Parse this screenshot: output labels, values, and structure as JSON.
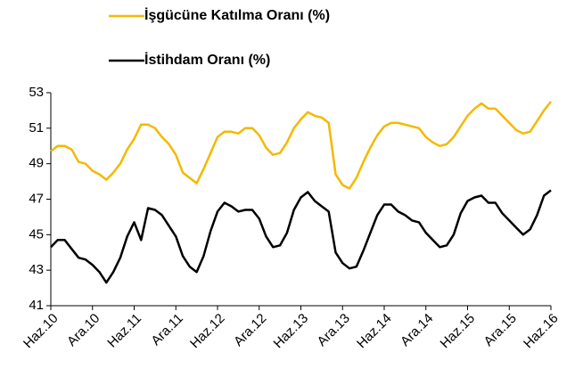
{
  "chart_data": {
    "type": "line",
    "categories": [
      "Haz.10",
      null,
      null,
      null,
      null,
      null,
      "Ara.10",
      null,
      null,
      null,
      null,
      null,
      "Haz.11",
      null,
      null,
      null,
      null,
      null,
      "Ara.11",
      null,
      null,
      null,
      null,
      null,
      "Haz.12",
      null,
      null,
      null,
      null,
      null,
      "Ara.12",
      null,
      null,
      null,
      null,
      null,
      "Haz.13",
      null,
      null,
      null,
      null,
      null,
      "Ara.13",
      null,
      null,
      null,
      null,
      null,
      "Haz.14",
      null,
      null,
      null,
      null,
      null,
      "Ara.14",
      null,
      null,
      null,
      null,
      null,
      "Haz.15",
      null,
      null,
      null,
      null,
      null,
      "Ara.15",
      null,
      null,
      null,
      null,
      null,
      "Haz.16"
    ],
    "series": [
      {
        "name": "İşgücüne Katılma Oranı (%)",
        "color": "#f5b800",
        "values": [
          49.7,
          50.0,
          50.0,
          49.8,
          49.1,
          49.0,
          48.6,
          48.4,
          48.1,
          48.5,
          49.0,
          49.8,
          50.4,
          51.2,
          51.2,
          51.0,
          50.5,
          50.1,
          49.5,
          48.5,
          48.2,
          47.9,
          48.7,
          49.6,
          50.5,
          50.8,
          50.8,
          50.7,
          51.0,
          51.0,
          50.6,
          49.9,
          49.5,
          49.6,
          50.2,
          51.0,
          51.5,
          51.9,
          51.7,
          51.6,
          51.3,
          48.4,
          47.8,
          47.6,
          48.2,
          49.1,
          49.9,
          50.6,
          51.1,
          51.3,
          51.3,
          51.2,
          51.1,
          51.0,
          50.5,
          50.2,
          50.0,
          50.1,
          50.5,
          51.1,
          51.7,
          52.1,
          52.4,
          52.1,
          52.1,
          51.7,
          51.3,
          50.9,
          50.7,
          50.8,
          51.4,
          52.0,
          52.5
        ]
      },
      {
        "name": "İstihdam Oranı (%)",
        "color": "#000000",
        "values": [
          44.3,
          44.7,
          44.7,
          44.2,
          43.7,
          43.6,
          43.3,
          42.9,
          42.3,
          42.9,
          43.7,
          44.9,
          45.7,
          44.7,
          46.5,
          46.4,
          46.1,
          45.5,
          44.9,
          43.8,
          43.2,
          42.9,
          43.8,
          45.2,
          46.3,
          46.8,
          46.6,
          46.3,
          46.4,
          46.4,
          45.9,
          44.9,
          44.3,
          44.4,
          45.1,
          46.4,
          47.1,
          47.4,
          46.9,
          46.6,
          46.3,
          44.0,
          43.4,
          43.1,
          43.2,
          44.1,
          45.1,
          46.1,
          46.7,
          46.7,
          46.3,
          46.1,
          45.8,
          45.7,
          45.1,
          44.7,
          44.3,
          44.4,
          45.0,
          46.2,
          46.9,
          47.1,
          47.2,
          46.8,
          46.8,
          46.2,
          45.8,
          45.4,
          45.0,
          45.3,
          46.1,
          47.2,
          47.5
        ]
      }
    ],
    "ylim": [
      41,
      53
    ],
    "yticks": [
      41,
      43,
      45,
      47,
      49,
      51,
      53
    ],
    "grid": false,
    "legend": "top"
  }
}
